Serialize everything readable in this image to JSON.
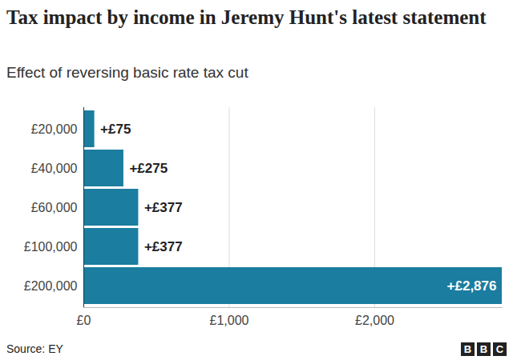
{
  "chart_data": {
    "type": "bar",
    "orientation": "horizontal",
    "title": "Tax impact by income in Jeremy Hunt's latest statement",
    "subtitle": "Effect of reversing basic rate tax cut",
    "categories": [
      "£20,000",
      "£40,000",
      "£60,000",
      "£100,000",
      "£200,000"
    ],
    "values": [
      75,
      275,
      377,
      377,
      2876
    ],
    "value_labels": [
      "+£75",
      "+£275",
      "+£377",
      "+£377",
      "+£2,876"
    ],
    "data_labels": true,
    "color": "#1b7d9f",
    "xlim": [
      0,
      2876
    ],
    "xticks": [
      {
        "value": 0,
        "label": "£0"
      },
      {
        "value": 1000,
        "label": "£1,000"
      },
      {
        "value": 2000,
        "label": "£2,000"
      }
    ],
    "grid": true,
    "source": "Source: EY",
    "logo": "BBC"
  }
}
